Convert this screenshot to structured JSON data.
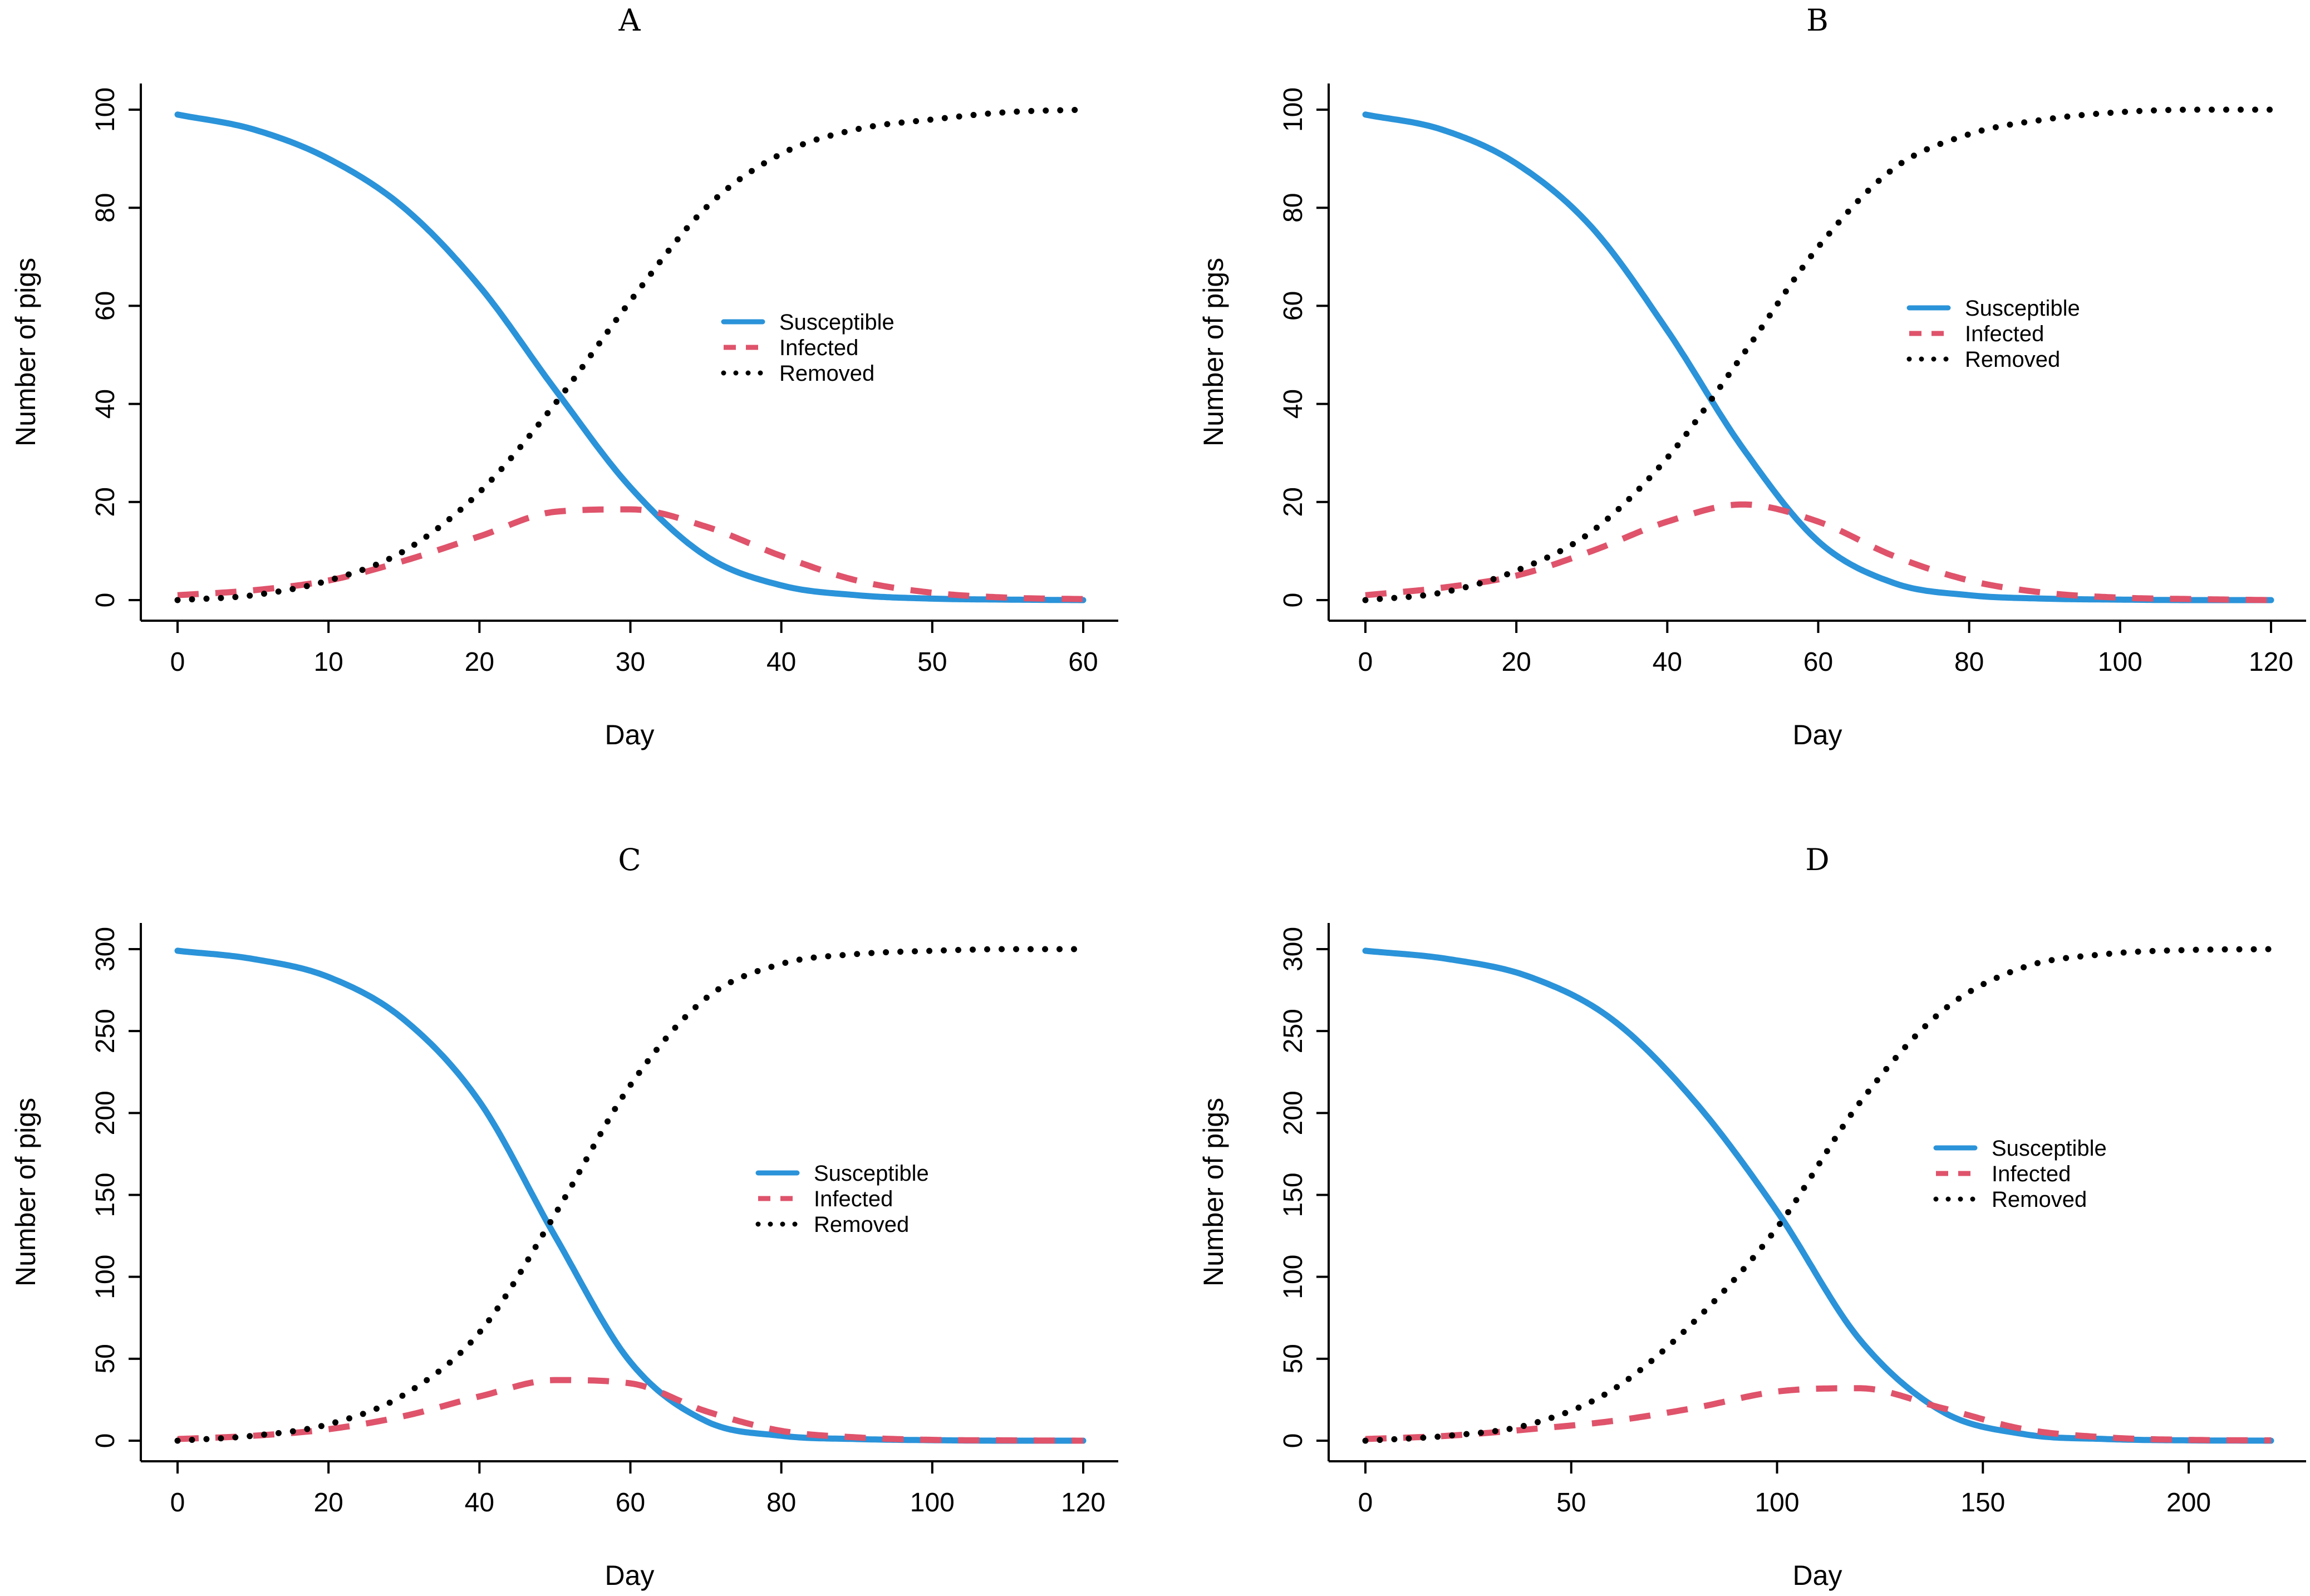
{
  "colors": {
    "susceptible": "#2a93d9",
    "infected": "#df536b",
    "removed": "#000000",
    "axis": "#000000"
  },
  "legend_labels": [
    "Susceptible",
    "Infected",
    "Removed"
  ],
  "chart_data": [
    {
      "type": "line",
      "title": "A",
      "xlabel": "Day",
      "ylabel": "Number of pigs",
      "xlim": [
        0,
        60
      ],
      "ylim": [
        0,
        100
      ],
      "xticks": [
        0,
        10,
        20,
        30,
        40,
        50,
        60
      ],
      "yticks": [
        0,
        20,
        40,
        60,
        80,
        100
      ],
      "grid": false,
      "legend_position": "center-right",
      "x": [
        0,
        5,
        10,
        15,
        20,
        25,
        30,
        35,
        40,
        45,
        50,
        55,
        60
      ],
      "series": [
        {
          "name": "Susceptible",
          "values": [
            99,
            96,
            90,
            80,
            64,
            43,
            23,
            9,
            3,
            1,
            0.3,
            0.1,
            0
          ]
        },
        {
          "name": "Infected",
          "values": [
            1,
            2,
            4,
            8,
            13,
            18,
            18.5,
            15,
            9,
            4,
            1.5,
            0.5,
            0.2
          ]
        },
        {
          "name": "Removed",
          "values": [
            0,
            1,
            4,
            10,
            22,
            40,
            61,
            80,
            91,
            96,
            98,
            99.5,
            100
          ]
        }
      ]
    },
    {
      "type": "line",
      "title": "B",
      "xlabel": "Day",
      "ylabel": "Number of pigs",
      "xlim": [
        0,
        120
      ],
      "ylim": [
        0,
        100
      ],
      "xticks": [
        0,
        20,
        40,
        60,
        80,
        100,
        120
      ],
      "yticks": [
        0,
        20,
        40,
        60,
        80,
        100
      ],
      "grid": false,
      "legend_position": "center-right",
      "x": [
        0,
        10,
        20,
        30,
        40,
        50,
        60,
        70,
        80,
        90,
        100,
        110,
        120
      ],
      "series": [
        {
          "name": "Susceptible",
          "values": [
            99,
            96,
            89,
            76,
            55,
            31,
            12,
            3.5,
            1,
            0.3,
            0.1,
            0,
            0
          ]
        },
        {
          "name": "Infected",
          "values": [
            1,
            2.5,
            5,
            10,
            16,
            19.5,
            16,
            9,
            4,
            1.5,
            0.5,
            0.2,
            0
          ]
        },
        {
          "name": "Removed",
          "values": [
            0,
            1.5,
            6,
            14,
            29,
            50,
            72,
            88,
            95,
            98,
            99.5,
            100,
            100
          ]
        }
      ]
    },
    {
      "type": "line",
      "title": "C",
      "xlabel": "Day",
      "ylabel": "Number of pigs",
      "xlim": [
        0,
        120
      ],
      "ylim": [
        0,
        300
      ],
      "xticks": [
        0,
        20,
        40,
        60,
        80,
        100,
        120
      ],
      "yticks": [
        0,
        50,
        100,
        150,
        200,
        250,
        300
      ],
      "grid": false,
      "legend_position": "center-right",
      "x": [
        0,
        10,
        20,
        30,
        40,
        50,
        60,
        70,
        80,
        90,
        100,
        110,
        120
      ],
      "series": [
        {
          "name": "Susceptible",
          "values": [
            299,
            294,
            283,
            257,
            207,
            125,
            48,
            12,
            3,
            1,
            0.3,
            0,
            0
          ]
        },
        {
          "name": "Infected",
          "values": [
            1,
            3,
            7,
            15,
            27,
            37,
            35,
            18,
            6,
            2,
            0.5,
            0.2,
            0
          ]
        },
        {
          "name": "Removed",
          "values": [
            0,
            3,
            10,
            28,
            66,
            138,
            217,
            270,
            291,
            297,
            299,
            300,
            300
          ]
        }
      ]
    },
    {
      "type": "line",
      "title": "D",
      "xlabel": "Day",
      "ylabel": "Number of pigs",
      "xlim": [
        0,
        220
      ],
      "ylim": [
        0,
        300
      ],
      "xticks": [
        0,
        50,
        100,
        150,
        200
      ],
      "yticks": [
        0,
        50,
        100,
        150,
        200,
        250,
        300
      ],
      "grid": false,
      "legend_position": "center-right",
      "x": [
        0,
        20,
        40,
        60,
        80,
        100,
        120,
        140,
        160,
        180,
        200,
        220
      ],
      "series": [
        {
          "name": "Susceptible",
          "values": [
            299,
            294,
            283,
            257,
            207,
            140,
            62,
            18,
            4,
            1,
            0.2,
            0
          ]
        },
        {
          "name": "Infected",
          "values": [
            1,
            3,
            7,
            12,
            20,
            30,
            32,
            20,
            7,
            2,
            0.5,
            0.2
          ]
        },
        {
          "name": "Removed",
          "values": [
            0,
            3,
            10,
            31,
            73,
            130,
            206,
            262,
            289,
            297,
            299.5,
            300
          ]
        }
      ]
    }
  ]
}
